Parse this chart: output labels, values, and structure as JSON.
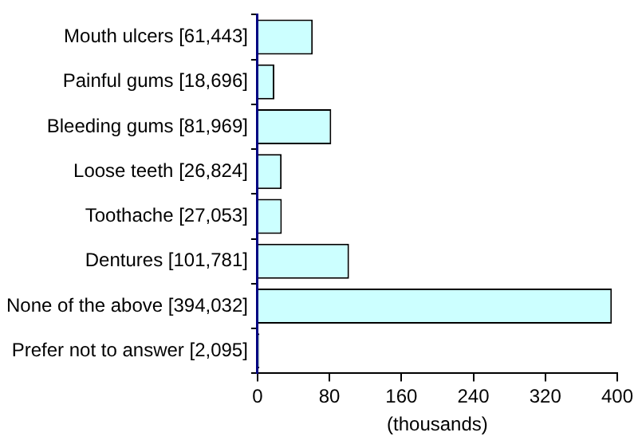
{
  "chart_data": {
    "type": "bar",
    "orientation": "horizontal",
    "xlabel": "(thousands)",
    "categories": [
      "Mouth ulcers [61,443]",
      "Painful gums [18,696]",
      "Bleeding gums [81,969]",
      "Loose teeth [26,824]",
      "Toothache [27,053]",
      "Dentures [101,781]",
      "None of the above [394,032]",
      "Prefer not to answer [2,095]"
    ],
    "values": [
      61.443,
      18.696,
      81.969,
      26.824,
      27.053,
      101.781,
      394.032,
      2.095
    ],
    "color": "#ccffff",
    "xlim": [
      0,
      400
    ],
    "xticks": [
      0,
      80,
      160,
      240,
      320,
      400
    ],
    "grid": false,
    "legend": false
  }
}
